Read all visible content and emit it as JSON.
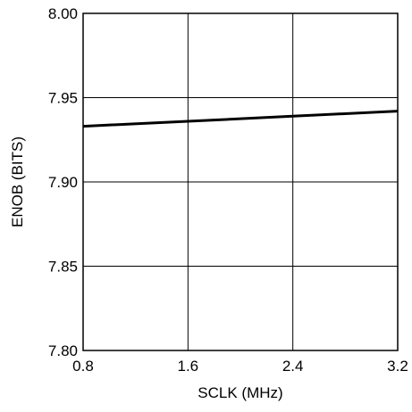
{
  "chart_data": {
    "type": "line",
    "xlabel": "SCLK (MHz)",
    "ylabel": "ENOB (BITS)",
    "xlim": [
      0.8,
      3.2
    ],
    "ylim": [
      7.8,
      8.0
    ],
    "x_ticks": [
      "0.8",
      "1.6",
      "2.4",
      "3.2"
    ],
    "y_ticks": [
      "7.80",
      "7.85",
      "7.90",
      "7.95",
      "8.00"
    ],
    "grid": true,
    "series": [
      {
        "x": [
          0.8,
          1.6,
          2.4,
          3.2
        ],
        "y": [
          7.933,
          7.936,
          7.939,
          7.942
        ],
        "color": "#000000"
      }
    ]
  }
}
